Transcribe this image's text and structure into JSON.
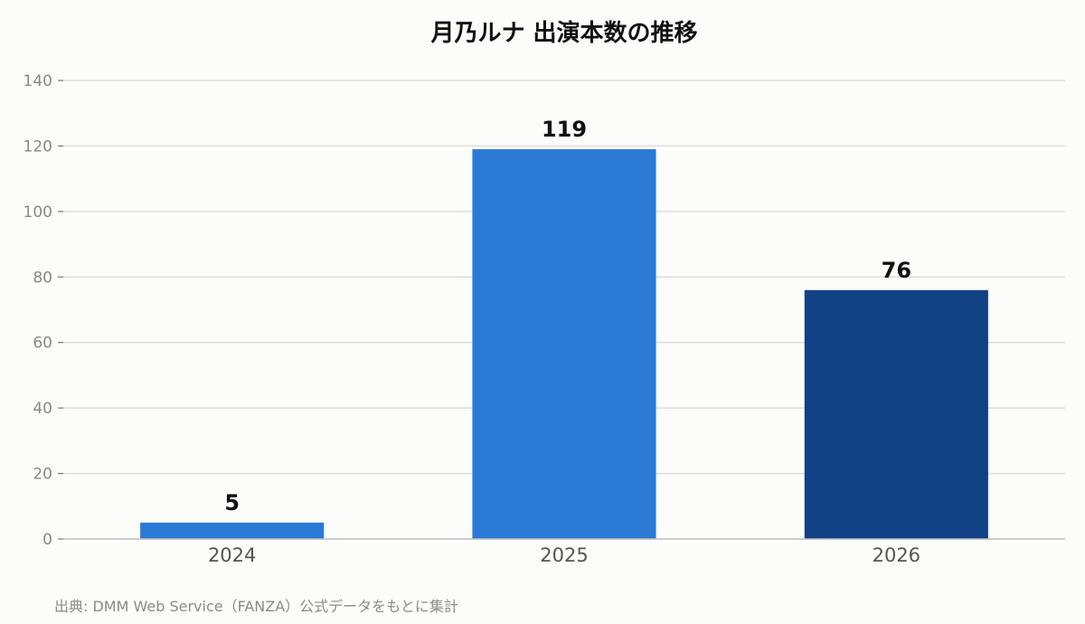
{
  "chart_data": {
    "type": "bar",
    "title": "月乃ルナ 出演本数の推移",
    "categories": [
      "2024",
      "2025",
      "2026"
    ],
    "values": [
      5,
      119,
      76
    ],
    "data_labels": [
      "5",
      "119",
      "76"
    ],
    "bar_colors": [
      "#2b7ad6",
      "#2b7ad6",
      "#114184"
    ],
    "ylim": [
      0,
      140
    ],
    "yticks": [
      0,
      20,
      40,
      60,
      80,
      100,
      120,
      140
    ],
    "grid": true,
    "legend": "none",
    "xlabel": "",
    "ylabel": ""
  },
  "source_note": "出典: DMM Web Service（FANZA）公式データをもとに集計",
  "colors": {
    "background": "#fcfcfa",
    "grid": "#dddddd",
    "axis": "#bbbbbb"
  }
}
